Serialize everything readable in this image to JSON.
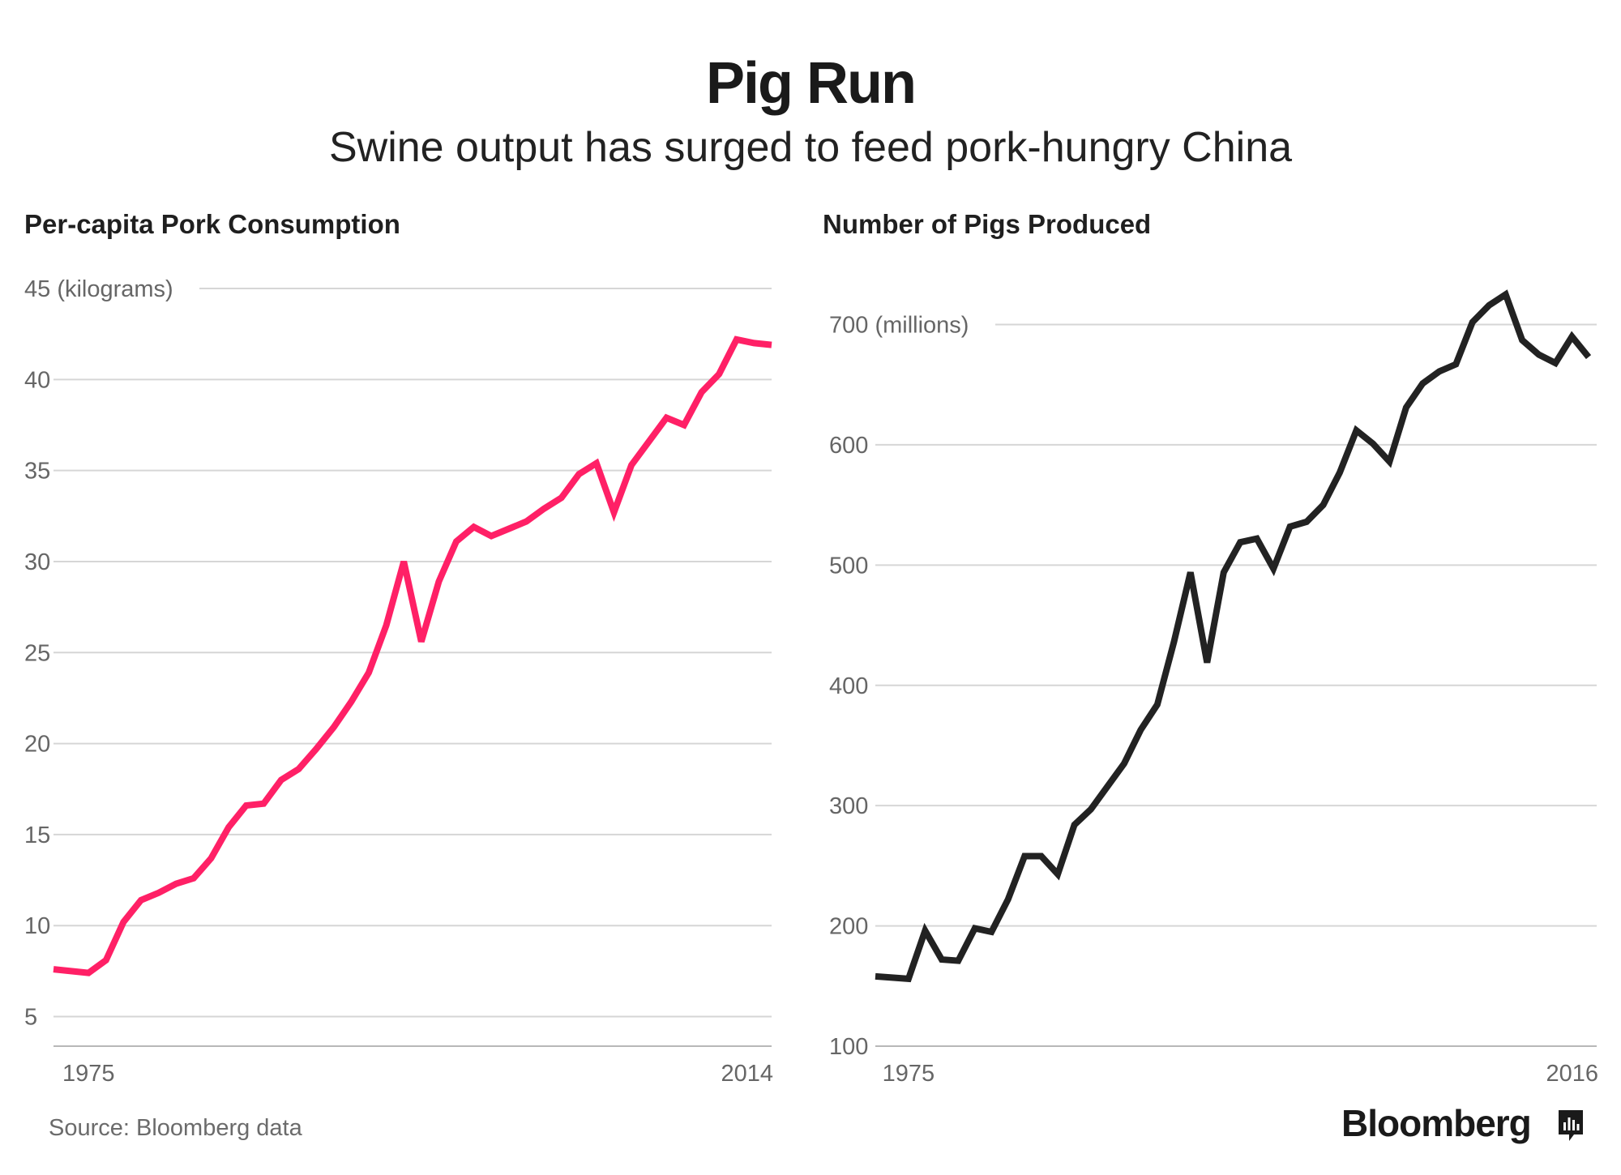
{
  "header": {
    "title": "Pig Run",
    "subtitle": "Swine output has surged to feed pork-hungry China"
  },
  "footer": {
    "source": "Source: Bloomberg data",
    "brand": "Bloomberg"
  },
  "colors": {
    "left_line": "#ff2066",
    "right_line": "#222222",
    "grid": "#d6d6d6",
    "tick_text": "#666666"
  },
  "chart_data": [
    {
      "type": "line",
      "title": "Per-capita Pork Consumption",
      "ylabel": "(kilograms)",
      "xlabel": "",
      "ylim": [
        4,
        45
      ],
      "yticks": [
        5,
        10,
        15,
        20,
        25,
        30,
        35,
        40,
        45
      ],
      "top_tick_label": "45 (kilograms)",
      "xlim": [
        1973,
        2014
      ],
      "xticks": [
        1975,
        2014
      ],
      "grid": true,
      "series": [
        {
          "name": "Per-capita Pork Consumption",
          "x": [
            1973,
            1975,
            1976,
            1977,
            1978,
            1979,
            1980,
            1981,
            1982,
            1983,
            1984,
            1985,
            1986,
            1987,
            1988,
            1989,
            1990,
            1991,
            1992,
            1993,
            1994,
            1995,
            1996,
            1997,
            1998,
            1999,
            2000,
            2001,
            2002,
            2003,
            2004,
            2005,
            2006,
            2007,
            2008,
            2009,
            2010,
            2011,
            2012,
            2013,
            2014
          ],
          "y": [
            7.6,
            7.4,
            8.1,
            10.2,
            11.4,
            11.8,
            12.3,
            12.6,
            13.7,
            15.4,
            16.6,
            16.7,
            18.0,
            18.6,
            19.7,
            20.9,
            22.3,
            23.9,
            26.5,
            30.0,
            25.6,
            28.9,
            31.1,
            31.9,
            31.4,
            31.8,
            32.2,
            32.9,
            33.5,
            34.8,
            35.4,
            32.7,
            35.3,
            36.6,
            37.9,
            37.5,
            39.3,
            40.3,
            42.2,
            42.0,
            41.9
          ]
        }
      ]
    },
    {
      "type": "line",
      "title": "Number of Pigs Produced",
      "ylabel": "(millions)",
      "xlabel": "",
      "ylim": [
        100,
        730
      ],
      "yticks": [
        100,
        200,
        300,
        400,
        500,
        600,
        700
      ],
      "top_tick_label": "700 (millions)",
      "xlim": [
        1973,
        2016
      ],
      "xticks": [
        1975,
        2016
      ],
      "grid": true,
      "series": [
        {
          "name": "Number of Pigs Produced",
          "x": [
            1973,
            1974,
            1975,
            1976,
            1977,
            1978,
            1979,
            1980,
            1981,
            1982,
            1983,
            1984,
            1985,
            1986,
            1987,
            1988,
            1989,
            1990,
            1991,
            1992,
            1993,
            1994,
            1995,
            1996,
            1997,
            1998,
            1999,
            2000,
            2001,
            2002,
            2003,
            2004,
            2005,
            2006,
            2007,
            2008,
            2009,
            2010,
            2011,
            2012,
            2013,
            2014,
            2015,
            2016
          ],
          "y": [
            158,
            157,
            156,
            196,
            172,
            171,
            198,
            195,
            222,
            258,
            258,
            243,
            284,
            297,
            316,
            335,
            363,
            384,
            436,
            494,
            419,
            494,
            519,
            522,
            497,
            532,
            536,
            550,
            577,
            612,
            601,
            586,
            631,
            651,
            661,
            667,
            702,
            716,
            725,
            687,
            675,
            668,
            690,
            673
          ]
        }
      ]
    }
  ]
}
